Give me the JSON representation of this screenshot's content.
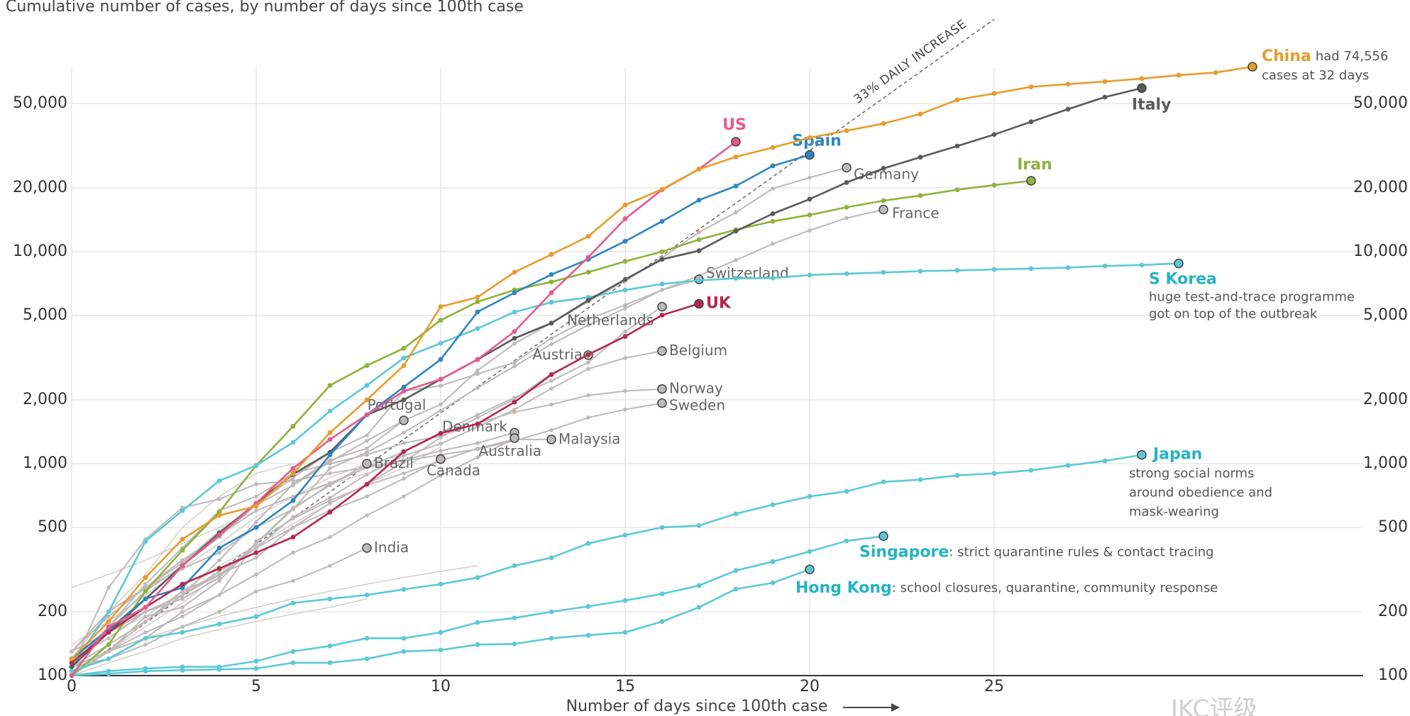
{
  "chart_data": {
    "type": "line",
    "title": "Cumulative number of cases, by number of days since 100th case",
    "x_label": "Number of days since 100th case",
    "watermark": "IKC评级",
    "log_scale_y": true,
    "grid": true,
    "xlim": [
      0,
      35
    ],
    "xticks": [
      0,
      5,
      10,
      15,
      20,
      25
    ],
    "ylim": [
      100,
      100000
    ],
    "yticks": [
      100,
      200,
      500,
      {
        "value": 1000,
        "label": "1,000"
      },
      {
        "value": 2000,
        "label": "2,000"
      },
      {
        "value": 5000,
        "label": "5,000"
      },
      {
        "value": 10000,
        "label": "10,000"
      },
      {
        "value": 20000,
        "label": "20,000"
      },
      {
        "value": 50000,
        "label": "50,000"
      }
    ],
    "reference_line": {
      "label": "33% DAILY INCREASE",
      "daily_increase_pct": 33,
      "start": 100,
      "xlim": [
        0,
        25
      ]
    },
    "series": [
      {
        "color": "#cfcbc7",
        "values": [
          120,
          200,
          300,
          500,
          700,
          900,
          1000
        ]
      },
      {
        "color": "#cfcbc7",
        "values": [
          260,
          300,
          350,
          420,
          500,
          600,
          700,
          800,
          900
        ]
      },
      {
        "color": "#cfcbc7",
        "values": [
          110,
          130,
          150,
          170,
          190,
          210,
          230,
          250,
          270,
          290,
          310,
          330
        ]
      },
      {
        "color": "#cfcbc7",
        "values": [
          100,
          115,
          130,
          150,
          165,
          180,
          195,
          210,
          230
        ]
      },
      {
        "color": "#cfcbc7",
        "values": [
          140,
          180,
          240,
          320,
          420,
          560,
          700,
          860,
          1000,
          1100
        ]
      },
      {
        "color": "#cfcbc7",
        "values": [
          105,
          130,
          170,
          220,
          300,
          400,
          500,
          600
        ]
      },
      {
        "color": "#cfcbc7",
        "values": [
          120,
          160,
          190,
          250,
          330,
          410,
          520,
          650,
          800,
          960,
          1200
        ]
      },
      {
        "name": "Germany",
        "color": "#bdbab7",
        "values": [
          130,
          160,
          200,
          240,
          350,
          530,
          800,
          1040,
          1180,
          1600,
          1900,
          2750,
          3680,
          4600,
          5810,
          7270,
          9360,
          12330,
          15320,
          19850,
          22360,
          24900
        ]
      },
      {
        "name": "France",
        "color": "#bdbab7",
        "values": [
          100,
          130,
          190,
          210,
          280,
          420,
          610,
          950,
          1130,
          1400,
          1780,
          2280,
          2880,
          3660,
          4500,
          5400,
          6600,
          7700,
          9100,
          10900,
          12600,
          14400,
          15800
        ]
      },
      {
        "name": "Switzerland",
        "color": "#bdbab7",
        "values": [
          110,
          200,
          260,
          340,
          480,
          640,
          860,
          1130,
          1360,
          2200,
          2330,
          2650,
          3000,
          3900,
          4800,
          5600,
          6600,
          7400
        ]
      },
      {
        "name": "Netherlands",
        "color": "#bdbab7",
        "values": [
          130,
          190,
          260,
          320,
          380,
          500,
          610,
          800,
          960,
          1140,
          1400,
          1700,
          2050,
          2460,
          3000,
          4200,
          5500
        ]
      },
      {
        "name": "Belgium",
        "color": "#bdbab7",
        "values": [
          110,
          170,
          200,
          240,
          310,
          400,
          560,
          690,
          890,
          1090,
          1240,
          1490,
          1800,
          2260,
          2800,
          3150,
          3400
        ]
      },
      {
        "name": "Austria",
        "color": "#bdbab7",
        "values": [
          100,
          130,
          180,
          240,
          300,
          360,
          500,
          650,
          800,
          1020,
          1330,
          1650,
          2010,
          2650,
          3250
        ]
      },
      {
        "name": "Norway",
        "color": "#bdbab7",
        "values": [
          110,
          170,
          270,
          400,
          600,
          700,
          900,
          1000,
          1100,
          1250,
          1350,
          1550,
          1750,
          1900,
          2100,
          2200,
          2250
        ]
      },
      {
        "name": "Sweden",
        "color": "#bdbab7",
        "values": [
          130,
          200,
          260,
          350,
          460,
          600,
          700,
          810,
          960,
          1030,
          1100,
          1170,
          1280,
          1440,
          1650,
          1800,
          1930
        ]
      },
      {
        "name": "Malaysia",
        "color": "#bdbab7",
        "values": [
          110,
          130,
          150,
          200,
          240,
          430,
          550,
          670,
          790,
          900,
          1030,
          1180,
          1300,
          1300
        ]
      },
      {
        "name": "Denmark",
        "color": "#bdbab7",
        "values": [
          110,
          260,
          440,
          620,
          680,
          800,
          830,
          900,
          960,
          1040,
          1150,
          1250,
          1400
        ]
      },
      {
        "name": "Australia",
        "color": "#bdbab7",
        "values": [
          110,
          130,
          160,
          190,
          240,
          300,
          380,
          450,
          570,
          700,
          880,
          1070,
          1320
        ]
      },
      {
        "name": "Canada",
        "color": "#bdbab7",
        "values": [
          110,
          140,
          180,
          250,
          300,
          400,
          500,
          600,
          700,
          850,
          1050
        ]
      },
      {
        "name": "Portugal",
        "color": "#bdbab7",
        "values": [
          110,
          170,
          250,
          330,
          450,
          640,
          790,
          1020,
          1280,
          1600
        ]
      },
      {
        "name": "Brazil",
        "color": "#bdbab7",
        "values": [
          120,
          150,
          200,
          230,
          290,
          420,
          620,
          790,
          1000
        ]
      },
      {
        "name": "India",
        "color": "#bdbab7",
        "values": [
          110,
          120,
          140,
          170,
          200,
          250,
          280,
          330,
          400
        ]
      },
      {
        "name": "Iran",
        "color": "#8db33a",
        "values": [
          100,
          140,
          250,
          390,
          590,
          980,
          1500,
          2340,
          2900,
          3500,
          4750,
          5800,
          6600,
          7200,
          8000,
          9000,
          10000,
          11400,
          12700,
          13900,
          14900,
          16200,
          17400,
          18400,
          19600,
          20600,
          21600
        ]
      },
      {
        "name": "S Korea",
        "color": "#5cc9d6",
        "note": [
          "huge test-and-trace programme",
          "got on top of the outbreak"
        ],
        "values": [
          110,
          200,
          430,
          600,
          830,
          980,
          1260,
          1770,
          2340,
          3150,
          3700,
          4340,
          5190,
          5770,
          6090,
          6590,
          7040,
          7320,
          7480,
          7510,
          7760,
          7870,
          7980,
          8090,
          8160,
          8240,
          8320,
          8410,
          8560,
          8650,
          8800
        ]
      },
      {
        "name": "Japan",
        "color": "#5cc9d6",
        "note": [
          "strong social norms",
          "around obedience and",
          "mask-wearing"
        ],
        "values": [
          105,
          120,
          150,
          160,
          175,
          190,
          220,
          230,
          240,
          255,
          270,
          290,
          330,
          360,
          420,
          460,
          500,
          510,
          580,
          640,
          700,
          740,
          820,
          840,
          880,
          900,
          930,
          980,
          1030,
          1100
        ]
      },
      {
        "name": "Singapore",
        "color": "#5cc9d6",
        "note": [
          ": strict quarantine rules & contact tracing"
        ],
        "values": [
          100,
          105,
          108,
          110,
          110,
          117,
          130,
          138,
          150,
          150,
          160,
          178,
          187,
          200,
          212,
          226,
          243,
          266,
          313,
          345,
          385,
          432,
          455
        ]
      },
      {
        "name": "Hong Kong",
        "color": "#5cc9d6",
        "note": [
          ": school closures, quarantine, community response"
        ],
        "values": [
          100,
          102,
          105,
          106,
          107,
          108,
          115,
          115,
          120,
          130,
          132,
          140,
          141,
          150,
          155,
          160,
          180,
          210,
          256,
          274,
          317
        ]
      },
      {
        "name": "Italy",
        "color": "#5a5a5a",
        "values": [
          110,
          160,
          230,
          330,
          470,
          650,
          890,
          1130,
          1700,
          2000,
          2500,
          3100,
          3900,
          4600,
          5900,
          7400,
          9200,
          10100,
          12500,
          15100,
          17700,
          21200,
          24700,
          27900,
          31500,
          35700,
          41000,
          47000,
          53600,
          59100
        ]
      },
      {
        "name": "Spain",
        "color": "#2e86c1",
        "values": [
          120,
          165,
          230,
          260,
          400,
          500,
          670,
          1100,
          1700,
          2300,
          3100,
          5200,
          6400,
          7800,
          9200,
          11200,
          13900,
          17500,
          20400,
          25400,
          28600
        ]
      },
      {
        "name": "UK",
        "color": "#b5284e",
        "values": [
          115,
          160,
          210,
          270,
          320,
          380,
          450,
          590,
          800,
          1140,
          1390,
          1540,
          1950,
          2630,
          3270,
          3980,
          5020,
          5680
        ]
      },
      {
        "name": "US",
        "color": "#e8588f",
        "values": [
          100,
          170,
          210,
          330,
          460,
          650,
          950,
          1300,
          1700,
          2200,
          2500,
          3100,
          4200,
          6400,
          9400,
          14300,
          19600,
          24500,
          33000
        ]
      },
      {
        "name": "China",
        "color": "#e89c2a",
        "note": [
          "had 74,556",
          "cases at 32 days"
        ],
        "values": [
          120,
          180,
          290,
          440,
          570,
          630,
          900,
          1400,
          2000,
          2900,
          5500,
          6100,
          8000,
          9700,
          11800,
          16600,
          19700,
          24500,
          28000,
          31000,
          34500,
          37200,
          40200,
          44600,
          52000,
          55800,
          59900,
          61700,
          63500,
          65500,
          68000,
          70000,
          74556
        ]
      }
    ]
  }
}
